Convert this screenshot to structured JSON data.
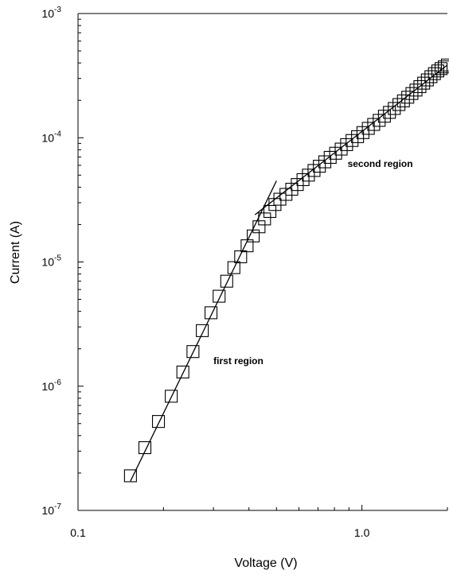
{
  "chart_data": {
    "type": "scatter",
    "xlabel": "Voltage  (V)",
    "ylabel": "Current (A)",
    "x_scale": "log",
    "y_scale": "log",
    "xlim": [
      0.1,
      2.0
    ],
    "ylim": [
      1e-07,
      0.001
    ],
    "x_tick_labels": [
      {
        "value": 0.1,
        "label": "0.1"
      },
      {
        "value": 1.0,
        "label": "1.0"
      }
    ],
    "y_tick_labels": [
      {
        "value": 1e-07,
        "base": "10",
        "exp": "-7"
      },
      {
        "value": 1e-06,
        "base": "10",
        "exp": "-6"
      },
      {
        "value": 1e-05,
        "base": "10",
        "exp": "-5"
      },
      {
        "value": 0.0001,
        "base": "10",
        "exp": "-4"
      },
      {
        "value": 0.001,
        "base": "10",
        "exp": "-3"
      }
    ],
    "grid": false,
    "marker": "open-square",
    "color": "#000000",
    "series": [
      {
        "points": [
          [
            0.153,
            1.9e-07
          ],
          [
            0.172,
            3.2e-07
          ],
          [
            0.192,
            5.2e-07
          ],
          [
            0.213,
            8.3e-07
          ],
          [
            0.234,
            1.3e-06
          ],
          [
            0.254,
            1.9e-06
          ],
          [
            0.274,
            2.8e-06
          ],
          [
            0.294,
            3.9e-06
          ],
          [
            0.314,
            5.3e-06
          ],
          [
            0.334,
            7e-06
          ],
          [
            0.354,
            9e-06
          ],
          [
            0.374,
            1.1e-05
          ],
          [
            0.394,
            1.35e-05
          ],
          [
            0.414,
            1.62e-05
          ],
          [
            0.434,
            1.92e-05
          ],
          [
            0.454,
            2.22e-05
          ],
          [
            0.474,
            2.55e-05
          ],
          [
            0.494,
            2.9e-05
          ],
          [
            0.514,
            3.2e-05
          ],
          [
            0.54,
            3.5e-05
          ],
          [
            0.566,
            3.85e-05
          ],
          [
            0.592,
            4.2e-05
          ],
          [
            0.62,
            4.6e-05
          ],
          [
            0.648,
            5e-05
          ],
          [
            0.678,
            5.45e-05
          ],
          [
            0.708,
            5.9e-05
          ],
          [
            0.74,
            6.4e-05
          ],
          [
            0.773,
            6.95e-05
          ],
          [
            0.808,
            7.5e-05
          ],
          [
            0.845,
            8.1e-05
          ],
          [
            0.883,
            8.8e-05
          ],
          [
            0.923,
            9.5e-05
          ],
          [
            0.965,
            0.000102
          ],
          [
            1.008,
            0.00011
          ],
          [
            1.053,
            0.000119
          ],
          [
            1.1,
            0.000128
          ],
          [
            1.15,
            0.000138
          ],
          [
            1.2,
            0.000149
          ],
          [
            1.25,
            0.00016
          ],
          [
            1.3,
            0.000172
          ],
          [
            1.35,
            0.000185
          ],
          [
            1.4,
            0.000198
          ],
          [
            1.45,
            0.000212
          ],
          [
            1.5,
            0.000227
          ],
          [
            1.55,
            0.000242
          ],
          [
            1.6,
            0.000258
          ],
          [
            1.65,
            0.000275
          ],
          [
            1.7,
            0.000292
          ],
          [
            1.75,
            0.00031
          ],
          [
            1.8,
            0.000328
          ],
          [
            1.85,
            0.000345
          ],
          [
            1.9,
            0.00036
          ],
          [
            1.95,
            0.000372
          ],
          [
            2.0,
            0.000385
          ]
        ]
      }
    ],
    "fit_lines": [
      {
        "name": "first-region-fit",
        "points": [
          [
            0.153,
            1.72e-07
          ],
          [
            0.5,
            4.5e-05
          ]
        ]
      },
      {
        "name": "second-region-fit",
        "points": [
          [
            0.42,
            2.4e-05
          ],
          [
            2.0,
            0.000385
          ]
        ]
      }
    ],
    "annotations": [
      {
        "text": "first region",
        "x": 0.3,
        "y": 1.5e-06
      },
      {
        "text": "second region",
        "x": 0.89,
        "y": 5.8e-05
      }
    ]
  }
}
